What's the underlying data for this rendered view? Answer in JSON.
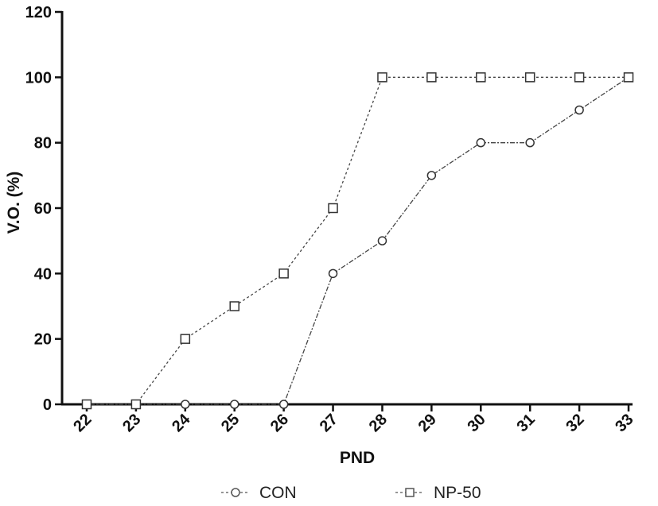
{
  "chart_data": {
    "type": "line",
    "title": "",
    "xlabel": "PND",
    "ylabel": "V.O. (%)",
    "x": [
      22,
      23,
      24,
      25,
      26,
      27,
      28,
      29,
      30,
      31,
      32,
      33
    ],
    "ylim": [
      0,
      120
    ],
    "yticks": [
      0,
      20,
      40,
      60,
      80,
      100,
      120
    ],
    "grid": false,
    "legend_position": "bottom",
    "series": [
      {
        "name": "CON",
        "marker": "circle",
        "values": [
          0,
          0,
          0,
          0,
          0,
          40,
          50,
          70,
          80,
          80,
          90,
          100
        ]
      },
      {
        "name": "NP-50",
        "marker": "square",
        "values": [
          0,
          0,
          20,
          30,
          40,
          60,
          100,
          100,
          100,
          100,
          100,
          100
        ]
      }
    ]
  }
}
